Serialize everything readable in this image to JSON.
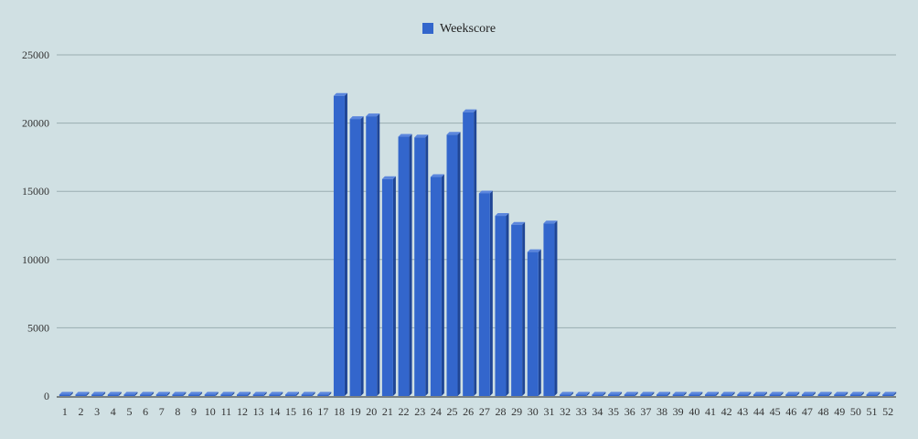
{
  "colors": {
    "background": "#d0e0e3",
    "bar_front": "#3366cc",
    "bar_top": "#5b86dd",
    "bar_side": "#1f4595",
    "gridline": "#9aaeb1",
    "axis": "#222222"
  },
  "chart_data": {
    "type": "bar",
    "title": "",
    "xlabel": "",
    "ylabel": "",
    "legend_position": "top",
    "grid": true,
    "three_d": true,
    "ylim": [
      0,
      25000
    ],
    "yticks": [
      0,
      5000,
      10000,
      15000,
      20000,
      25000
    ],
    "categories": [
      "1",
      "2",
      "3",
      "4",
      "5",
      "6",
      "7",
      "8",
      "9",
      "10",
      "11",
      "12",
      "13",
      "14",
      "15",
      "16",
      "17",
      "18",
      "19",
      "20",
      "21",
      "22",
      "23",
      "24",
      "25",
      "26",
      "27",
      "28",
      "29",
      "30",
      "31",
      "32",
      "33",
      "34",
      "35",
      "36",
      "37",
      "38",
      "39",
      "40",
      "41",
      "42",
      "43",
      "44",
      "45",
      "46",
      "47",
      "48",
      "49",
      "50",
      "51",
      "52"
    ],
    "series": [
      {
        "name": "Weekscore",
        "values": [
          0,
          0,
          0,
          0,
          0,
          0,
          0,
          0,
          0,
          0,
          0,
          0,
          0,
          0,
          0,
          0,
          0,
          22000,
          20300,
          20500,
          15900,
          19000,
          18950,
          16050,
          19150,
          20800,
          14850,
          13200,
          12550,
          10550,
          12650,
          0,
          0,
          0,
          0,
          0,
          0,
          0,
          0,
          0,
          0,
          0,
          0,
          0,
          0,
          0,
          0,
          0,
          0,
          0,
          0,
          0
        ]
      }
    ]
  }
}
